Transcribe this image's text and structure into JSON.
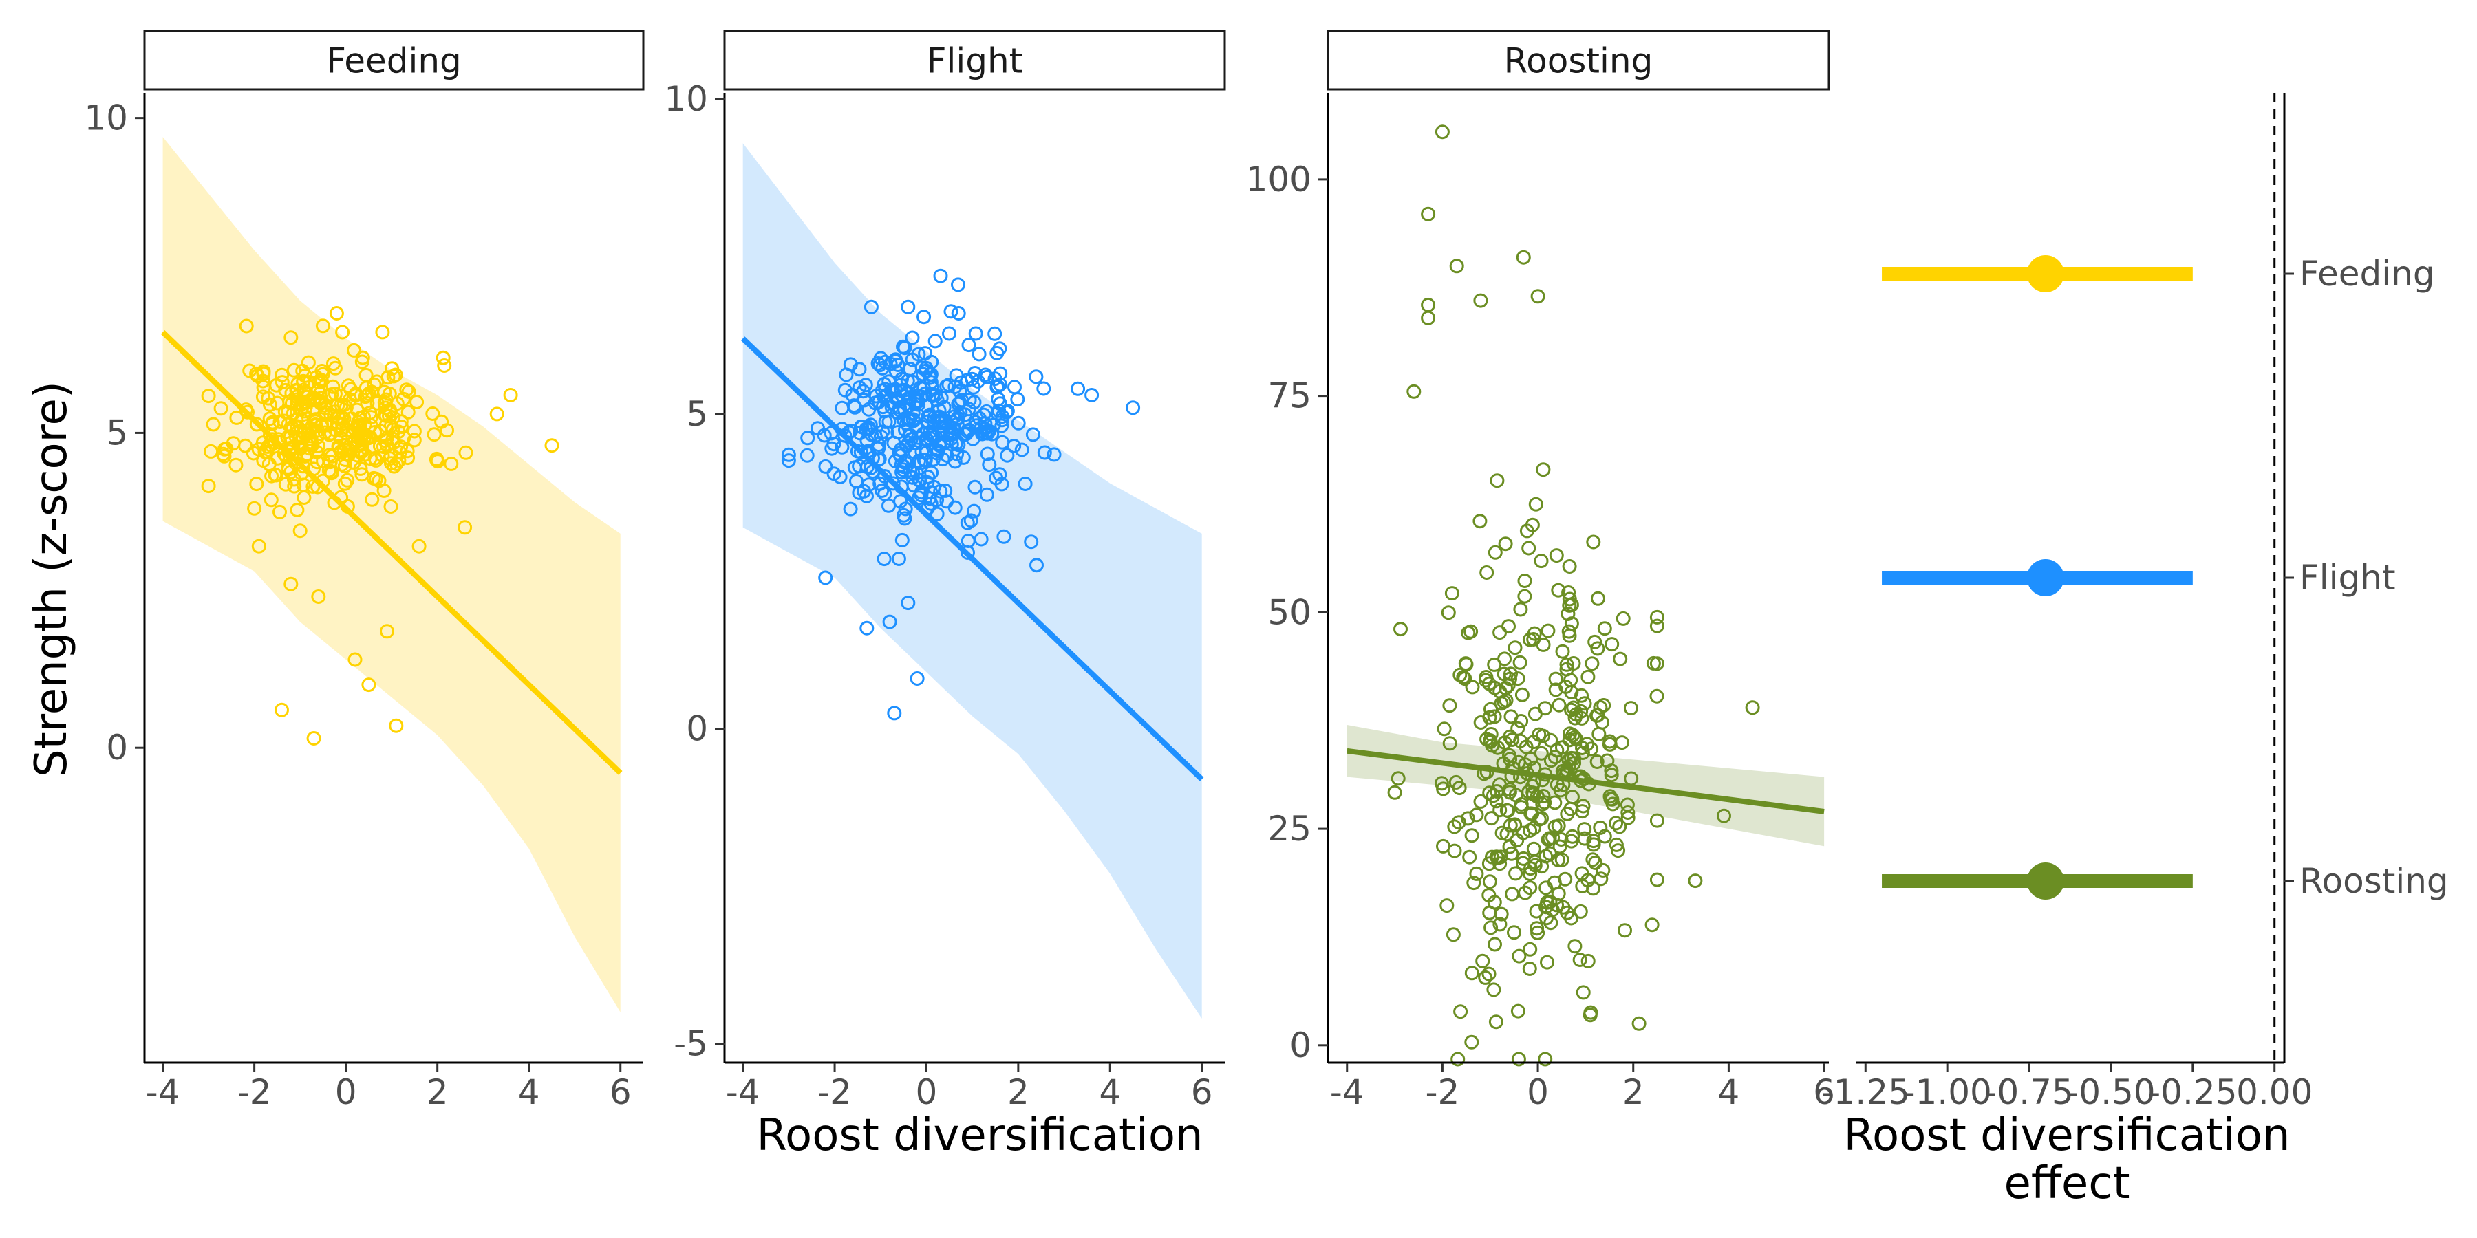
{
  "chart_data": [
    {
      "type": "scatter",
      "panel": "Feeding",
      "strip_label": "Feeding",
      "color": "#FFD300",
      "band_color": "#FFF3C4",
      "x_ticks": [
        -4,
        -2,
        0,
        2,
        4,
        6
      ],
      "x_tick_labels": [
        "-4",
        "-2",
        "0",
        "2",
        "4",
        "6"
      ],
      "y_ticks": [
        0,
        5,
        10
      ],
      "y_tick_labels": [
        "0",
        "5",
        "10"
      ],
      "xlim": [
        -4.4,
        6.5
      ],
      "ylim": [
        -5,
        10.4
      ],
      "fit_line": {
        "x": [
          -4,
          6
        ],
        "y": [
          6.6,
          -0.4
        ]
      },
      "band": {
        "x": [
          -4,
          -2,
          -1,
          0,
          1,
          2,
          3,
          4,
          5,
          6
        ],
        "upper": [
          9.7,
          7.9,
          7.1,
          6.5,
          6.0,
          5.6,
          5.1,
          4.5,
          3.9,
          3.4
        ],
        "lower": [
          3.6,
          2.8,
          2.0,
          1.4,
          0.8,
          0.2,
          -0.6,
          -1.6,
          -3.0,
          -4.2
        ]
      },
      "cluster": {
        "center_x": -0.3,
        "center_y": 5.1,
        "sd_x": 1.05,
        "sd_y": 0.55,
        "count": 360
      },
      "outliers": [
        [
          -1.4,
          0.6
        ],
        [
          -0.7,
          0.15
        ],
        [
          0.5,
          1.0
        ],
        [
          1.1,
          0.35
        ],
        [
          0.2,
          1.4
        ],
        [
          0.9,
          1.85
        ],
        [
          -1.2,
          2.6
        ],
        [
          -0.6,
          2.4
        ],
        [
          -1.9,
          3.2
        ],
        [
          1.6,
          3.2
        ],
        [
          2.6,
          3.5
        ],
        [
          -2.0,
          3.8
        ],
        [
          4.5,
          4.8
        ],
        [
          3.6,
          5.6
        ],
        [
          3.3,
          5.3
        ],
        [
          -0.2,
          6.9
        ],
        [
          0.8,
          6.6
        ],
        [
          -0.5,
          6.7
        ]
      ]
    },
    {
      "type": "scatter",
      "panel": "Flight",
      "strip_label": "Flight",
      "color": "#1E90FF",
      "band_color": "#D3E9FD",
      "x_ticks": [
        -4,
        -2,
        0,
        2,
        4,
        6
      ],
      "x_tick_labels": [
        "-4",
        "-2",
        "0",
        "2",
        "4",
        "6"
      ],
      "y_ticks": [
        -5,
        0,
        5,
        10
      ],
      "y_tick_labels": [
        "-5",
        "0",
        "5",
        "10"
      ],
      "xlim": [
        -4.4,
        6.5
      ],
      "ylim": [
        -5.3,
        10.1
      ],
      "fit_line": {
        "x": [
          -4,
          6
        ],
        "y": [
          6.2,
          -0.8
        ]
      },
      "band": {
        "x": [
          -4,
          -2,
          -1,
          0,
          1,
          2,
          3,
          4,
          5,
          6
        ],
        "upper": [
          9.3,
          7.4,
          6.6,
          6.0,
          5.4,
          4.9,
          4.4,
          3.9,
          3.5,
          3.1
        ],
        "lower": [
          3.2,
          2.4,
          1.6,
          0.9,
          0.2,
          -0.4,
          -1.3,
          -2.3,
          -3.5,
          -4.6
        ]
      },
      "cluster": {
        "center_x": -0.2,
        "center_y": 4.8,
        "sd_x": 1.05,
        "sd_y": 0.7,
        "count": 360
      },
      "outliers": [
        [
          -0.7,
          0.25
        ],
        [
          -0.2,
          0.8
        ],
        [
          -0.4,
          2.0
        ],
        [
          -0.8,
          1.7
        ],
        [
          -1.3,
          1.6
        ],
        [
          -2.2,
          2.4
        ],
        [
          0.9,
          2.8
        ],
        [
          -0.6,
          2.7
        ],
        [
          2.4,
          2.6
        ],
        [
          4.5,
          5.1
        ],
        [
          3.3,
          5.4
        ],
        [
          3.6,
          5.3
        ],
        [
          -1.2,
          6.7
        ],
        [
          0.7,
          6.6
        ],
        [
          -0.4,
          6.7
        ]
      ]
    },
    {
      "type": "scatter",
      "panel": "Roosting",
      "strip_label": "Roosting",
      "color": "#6B8E23",
      "band_color": "#DFE6D0",
      "x_ticks": [
        -4,
        -2,
        0,
        2,
        4,
        6
      ],
      "x_tick_labels": [
        "-4",
        "-2",
        "0",
        "2",
        "4",
        "6"
      ],
      "y_ticks": [
        0,
        25,
        50,
        75,
        100
      ],
      "y_tick_labels": [
        "0",
        "25",
        "50",
        "75",
        "100"
      ],
      "xlim": [
        -4.4,
        6.1
      ],
      "ylim": [
        -2,
        110
      ],
      "fit_line": {
        "x": [
          -4,
          6
        ],
        "y": [
          34,
          27
        ]
      },
      "band": {
        "x": [
          -4,
          -2,
          0,
          2,
          4,
          6
        ],
        "upper": [
          37,
          35,
          34,
          33,
          32,
          31
        ],
        "lower": [
          31,
          30,
          29,
          27,
          25,
          23
        ]
      },
      "cluster": {
        "center_x": 0.0,
        "center_y": 30,
        "sd_x": 1.05,
        "sd_y": 12,
        "count": 360
      },
      "outliers": [
        [
          -2.0,
          105.5
        ],
        [
          -2.3,
          96
        ],
        [
          -0.3,
          91
        ],
        [
          -1.7,
          90
        ],
        [
          0.0,
          86.5
        ],
        [
          -2.3,
          84
        ],
        [
          -2.3,
          85.5
        ],
        [
          -2.6,
          75.5
        ],
        [
          -1.2,
          86
        ],
        [
          4.5,
          39
        ],
        [
          3.3,
          19
        ],
        [
          3.9,
          26.5
        ],
        [
          1.1,
          3.5
        ]
      ]
    },
    {
      "type": "scatter",
      "panel": "coefficient",
      "x_ticks": [
        -1.25,
        -1.0,
        -0.75,
        -0.5,
        -0.25,
        0.0
      ],
      "x_tick_labels": [
        "-1.25",
        "-1.00",
        "-0.75",
        "-0.50",
        "-0.25",
        "0.00"
      ],
      "xlim": [
        -1.28,
        0.03
      ],
      "xlabel": "Roost diversification effect",
      "xlabel_lines": [
        "Roost diversification",
        "effect"
      ],
      "y_categories": [
        "Feeding",
        "Flight",
        "Roosting"
      ],
      "points": [
        {
          "label": "Feeding",
          "estimate": -0.7,
          "low": -1.2,
          "high": -0.25,
          "color": "#FFD300"
        },
        {
          "label": "Flight",
          "estimate": -0.7,
          "low": -1.2,
          "high": -0.25,
          "color": "#1E90FF"
        },
        {
          "label": "Roosting",
          "estimate": -0.7,
          "low": -1.2,
          "high": -0.25,
          "color": "#6B8E23"
        }
      ],
      "reference_line": 0.0
    }
  ],
  "labels": {
    "ylabel": "Strength (z-score)",
    "shared_xlabel": "Roost diversification"
  }
}
